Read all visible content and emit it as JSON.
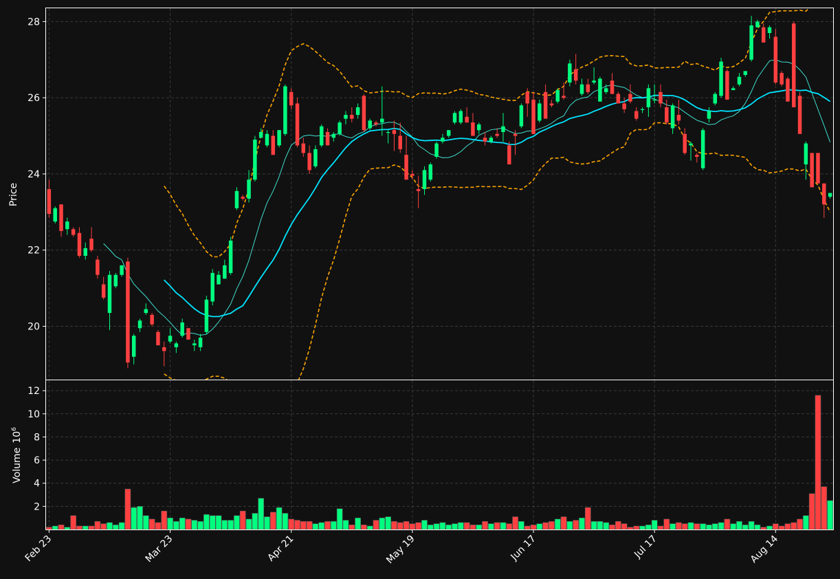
{
  "chart_data": {
    "type": "candlestick",
    "title": "",
    "price_panel": {
      "ylabel": "Price",
      "ylim": [
        18.6,
        28.35
      ],
      "yticks": [
        20,
        22,
        24,
        26,
        28
      ]
    },
    "volume_panel": {
      "ylabel": "Volume",
      "ylabel_exponent": "6",
      "unit": "10^6 shares",
      "ylim": [
        0,
        12.9
      ],
      "yticks": [
        2,
        4,
        6,
        8,
        10,
        12
      ]
    },
    "x_tick_labels": [
      {
        "label": "Feb 23",
        "index": 0
      },
      {
        "label": "Mar 23",
        "index": 20
      },
      {
        "label": "Apr 21",
        "index": 40
      },
      {
        "label": "May 19",
        "index": 60
      },
      {
        "label": "Jun 17",
        "index": 80
      },
      {
        "label": "Jul 17",
        "index": 100
      },
      {
        "label": "Aug 14",
        "index": 120
      }
    ],
    "series_styles": {
      "up_color": "#00ff7f",
      "down_color": "#ff4040",
      "ma_fast_color": "#40e0d0",
      "ma_slow_color": "#00e5ff",
      "bands_color": "#ffa500"
    },
    "grid": true,
    "legend": "none",
    "candles": [
      [
        23.6,
        23.85,
        22.85,
        22.95,
        0.2
      ],
      [
        22.75,
        23.15,
        22.7,
        23.1,
        0.3
      ],
      [
        23.2,
        23.2,
        22.35,
        22.5,
        0.4
      ],
      [
        22.55,
        22.85,
        22.4,
        22.75,
        0.2
      ],
      [
        22.55,
        22.6,
        22.35,
        22.4,
        1.2
      ],
      [
        22.45,
        22.6,
        21.8,
        21.85,
        0.3
      ],
      [
        21.85,
        22.2,
        21.75,
        22.05,
        0.3
      ],
      [
        22.3,
        22.6,
        21.95,
        22.0,
        0.3
      ],
      [
        21.75,
        21.85,
        21.25,
        21.35,
        0.7
      ],
      [
        21.1,
        21.3,
        20.7,
        20.75,
        0.5
      ],
      [
        20.35,
        21.45,
        19.9,
        21.35,
        0.6
      ],
      [
        21.05,
        21.4,
        21.0,
        21.35,
        0.4
      ],
      [
        21.35,
        21.6,
        21.3,
        21.6,
        0.6
      ],
      [
        21.7,
        21.8,
        18.9,
        19.05,
        3.5
      ],
      [
        19.2,
        19.8,
        19.0,
        19.75,
        1.9
      ],
      [
        19.95,
        20.2,
        19.85,
        20.15,
        2.0
      ],
      [
        20.35,
        20.6,
        20.3,
        20.45,
        1.2
      ],
      [
        20.3,
        20.35,
        20.0,
        20.05,
        0.9
      ],
      [
        19.85,
        19.9,
        19.55,
        19.5,
        0.6
      ],
      [
        19.45,
        19.6,
        18.95,
        19.35,
        1.6
      ],
      [
        19.6,
        19.95,
        19.55,
        19.75,
        1.0
      ],
      [
        19.45,
        19.6,
        19.3,
        19.55,
        0.7
      ],
      [
        19.75,
        20.2,
        19.7,
        20.1,
        1.0
      ],
      [
        19.95,
        19.95,
        19.65,
        19.65,
        0.9
      ],
      [
        19.5,
        19.65,
        19.35,
        19.55,
        0.8
      ],
      [
        19.45,
        19.8,
        19.35,
        19.7,
        0.7
      ],
      [
        19.85,
        20.8,
        19.8,
        20.7,
        1.3
      ],
      [
        20.65,
        21.5,
        20.55,
        21.4,
        1.2
      ],
      [
        21.1,
        21.45,
        21.1,
        21.35,
        1.2
      ],
      [
        21.25,
        21.75,
        21.25,
        21.6,
        0.8
      ],
      [
        21.4,
        22.35,
        21.35,
        22.25,
        0.8
      ],
      [
        23.1,
        23.65,
        23.05,
        23.55,
        1.2
      ],
      [
        23.4,
        23.45,
        23.3,
        23.35,
        1.6
      ],
      [
        23.35,
        24.1,
        23.25,
        23.85,
        0.9
      ],
      [
        23.85,
        25.0,
        23.8,
        24.9,
        1.4
      ],
      [
        24.95,
        25.2,
        24.95,
        25.1,
        2.7
      ],
      [
        24.75,
        25.15,
        24.7,
        25.05,
        1.1
      ],
      [
        25.0,
        25.15,
        24.5,
        24.5,
        1.5
      ],
      [
        24.75,
        25.15,
        24.7,
        25.15,
        1.9
      ],
      [
        25.05,
        26.35,
        25.0,
        26.3,
        1.4
      ],
      [
        26.15,
        26.25,
        25.7,
        25.8,
        0.9
      ],
      [
        25.85,
        26.0,
        24.7,
        24.75,
        0.8
      ],
      [
        24.8,
        24.95,
        24.45,
        24.55,
        0.7
      ],
      [
        24.55,
        24.75,
        24.0,
        24.1,
        0.7
      ],
      [
        24.2,
        24.75,
        24.15,
        24.65,
        0.5
      ],
      [
        24.75,
        25.3,
        24.7,
        25.25,
        0.6
      ],
      [
        25.1,
        25.2,
        24.75,
        24.75,
        0.7
      ],
      [
        24.95,
        25.1,
        24.85,
        25.05,
        0.7
      ],
      [
        25.05,
        25.4,
        25.0,
        25.35,
        1.8
      ],
      [
        25.45,
        25.65,
        25.3,
        25.55,
        0.8
      ],
      [
        25.55,
        25.75,
        25.35,
        25.45,
        0.4
      ],
      [
        25.55,
        25.85,
        25.45,
        25.75,
        1.0
      ],
      [
        26.05,
        26.1,
        25.1,
        25.15,
        0.4
      ],
      [
        25.2,
        25.45,
        25.15,
        25.4,
        0.3
      ],
      [
        25.35,
        25.4,
        25.25,
        25.3,
        0.8
      ],
      [
        25.35,
        26.3,
        25.0,
        25.45,
        1.0
      ],
      [
        25.1,
        25.15,
        24.8,
        25.1,
        1.1
      ],
      [
        25.15,
        25.4,
        24.6,
        25.05,
        0.7
      ],
      [
        25.0,
        25.35,
        24.55,
        24.65,
        0.6
      ],
      [
        24.5,
        25.0,
        23.85,
        23.85,
        0.7
      ],
      [
        24.0,
        24.1,
        23.85,
        23.95,
        0.5
      ],
      [
        23.6,
        23.95,
        23.1,
        23.55,
        0.6
      ],
      [
        23.6,
        24.2,
        23.45,
        24.1,
        0.8
      ],
      [
        23.85,
        24.3,
        23.8,
        24.25,
        0.4
      ],
      [
        24.45,
        24.85,
        24.4,
        24.8,
        0.5
      ],
      [
        24.85,
        25.05,
        24.8,
        24.95,
        0.6
      ],
      [
        25.0,
        25.15,
        24.95,
        25.15,
        0.4
      ],
      [
        25.35,
        25.65,
        25.3,
        25.6,
        0.5
      ],
      [
        25.35,
        25.7,
        25.3,
        25.65,
        0.6
      ],
      [
        25.5,
        25.75,
        25.35,
        25.35,
        0.6
      ],
      [
        25.35,
        25.6,
        25.0,
        25.0,
        0.4
      ],
      [
        25.15,
        25.35,
        25.05,
        25.3,
        0.4
      ],
      [
        24.95,
        25.1,
        24.75,
        24.85,
        0.7
      ],
      [
        24.85,
        25.0,
        24.8,
        24.95,
        0.5
      ],
      [
        25.05,
        25.2,
        24.95,
        25.0,
        0.6
      ],
      [
        25.1,
        25.6,
        24.85,
        25.25,
        0.6
      ],
      [
        24.75,
        24.85,
        24.25,
        24.25,
        0.5
      ],
      [
        25.05,
        25.15,
        24.5,
        25.0,
        1.1
      ],
      [
        25.25,
        25.85,
        25.2,
        25.8,
        0.7
      ],
      [
        26.15,
        26.25,
        25.5,
        25.85,
        0.3
      ],
      [
        25.95,
        26.15,
        25.05,
        25.05,
        0.4
      ],
      [
        25.4,
        25.95,
        25.35,
        25.85,
        0.5
      ],
      [
        26.15,
        26.35,
        25.45,
        25.45,
        0.6
      ],
      [
        25.85,
        25.95,
        25.75,
        25.8,
        0.7
      ],
      [
        25.9,
        26.25,
        25.85,
        26.2,
        0.9
      ],
      [
        26.05,
        26.4,
        25.95,
        26.0,
        1.1
      ],
      [
        26.4,
        27.0,
        26.3,
        26.9,
        0.7
      ],
      [
        26.75,
        27.15,
        26.35,
        26.45,
        0.8
      ],
      [
        26.1,
        26.5,
        26.05,
        26.35,
        1.0
      ],
      [
        26.35,
        26.5,
        26.1,
        26.15,
        1.9
      ],
      [
        26.4,
        26.8,
        26.35,
        26.45,
        0.7
      ],
      [
        25.9,
        26.55,
        25.9,
        26.5,
        0.7
      ],
      [
        26.15,
        26.35,
        26.1,
        26.25,
        0.6
      ],
      [
        26.45,
        26.65,
        26.1,
        26.1,
        0.4
      ],
      [
        26.1,
        26.15,
        25.85,
        25.85,
        0.7
      ],
      [
        25.85,
        26.0,
        25.6,
        25.7,
        0.5
      ],
      [
        26.1,
        26.35,
        25.85,
        25.9,
        0.2
      ],
      [
        25.65,
        25.75,
        25.4,
        25.45,
        0.3
      ],
      [
        25.7,
        25.75,
        25.6,
        25.7,
        0.3
      ],
      [
        25.75,
        26.35,
        25.5,
        26.25,
        0.4
      ],
      [
        25.95,
        26.35,
        25.85,
        25.95,
        0.8
      ],
      [
        26.15,
        26.35,
        25.75,
        25.85,
        0.3
      ],
      [
        25.75,
        25.95,
        25.3,
        25.35,
        0.9
      ],
      [
        25.2,
        25.85,
        25.05,
        25.8,
        0.5
      ],
      [
        25.55,
        25.95,
        25.3,
        25.4,
        0.6
      ],
      [
        25.05,
        25.2,
        24.5,
        24.55,
        0.5
      ],
      [
        24.75,
        24.85,
        24.35,
        24.8,
        0.6
      ],
      [
        24.5,
        24.55,
        24.3,
        24.45,
        0.5
      ],
      [
        24.15,
        25.2,
        24.1,
        25.15,
        0.5
      ],
      [
        25.45,
        25.75,
        25.35,
        25.65,
        0.4
      ],
      [
        25.85,
        26.15,
        25.8,
        26.1,
        0.5
      ],
      [
        26.05,
        27.05,
        26.0,
        26.95,
        0.6
      ],
      [
        26.7,
        26.75,
        25.95,
        25.95,
        0.9
      ],
      [
        26.2,
        26.3,
        26.25,
        26.25,
        0.5
      ],
      [
        26.35,
        26.65,
        26.3,
        26.55,
        0.7
      ],
      [
        26.6,
        26.7,
        26.55,
        26.7,
        0.4
      ],
      [
        27.0,
        28.15,
        26.95,
        27.9,
        0.7
      ],
      [
        27.85,
        28.05,
        27.85,
        28.0,
        0.4
      ],
      [
        27.85,
        27.95,
        27.45,
        27.45,
        0.2
      ],
      [
        27.7,
        27.9,
        27.55,
        27.85,
        0.3
      ],
      [
        27.6,
        27.8,
        26.35,
        26.4,
        0.5
      ],
      [
        26.65,
        26.7,
        26.3,
        26.35,
        0.3
      ],
      [
        26.5,
        26.55,
        25.9,
        25.9,
        0.5
      ],
      [
        27.95,
        28.0,
        25.75,
        25.75,
        0.6
      ],
      [
        26.05,
        26.15,
        25.05,
        25.05,
        0.9
      ],
      [
        24.25,
        24.85,
        23.85,
        24.8,
        1.2
      ],
      [
        24.55,
        24.55,
        23.65,
        23.65,
        3.1
      ],
      [
        24.55,
        24.55,
        23.75,
        23.75,
        11.6
      ],
      [
        23.75,
        23.75,
        22.85,
        23.2,
        3.7
      ],
      [
        23.4,
        23.5,
        23.35,
        23.5,
        2.5
      ]
    ]
  }
}
